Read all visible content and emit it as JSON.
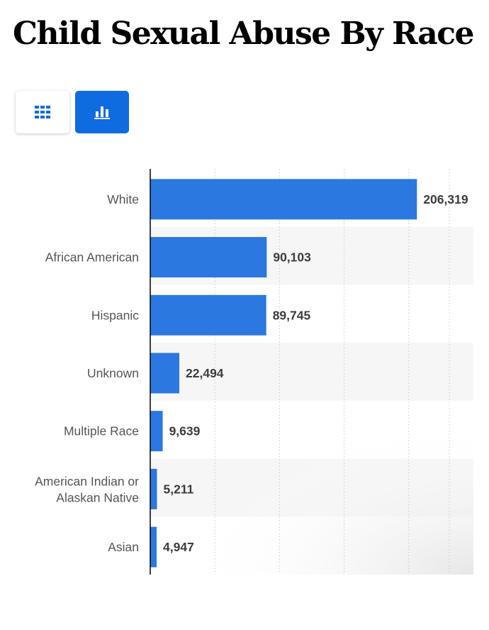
{
  "page": {
    "title": "Child Sexual Abuse By Race"
  },
  "view_toggle": {
    "table_icon": "grid-table-icon",
    "chart_icon": "bar-chart-icon",
    "active": "chart",
    "active_color": "#0f6be0"
  },
  "chart_data": {
    "type": "bar",
    "orientation": "horizontal",
    "title": "Child Sexual Abuse By Race",
    "xlabel": "",
    "ylabel": "",
    "categories": [
      "White",
      "African American",
      "Hispanic",
      "Unknown",
      "Multiple Race",
      "American Indian or Alaskan Native",
      "Asian"
    ],
    "values": [
      206319,
      90103,
      89745,
      22494,
      9639,
      5211,
      4947
    ],
    "value_labels": [
      "206,319",
      "90,103",
      "89,745",
      "22,494",
      "9,639",
      "5,211",
      "4,947"
    ],
    "xlim": [
      0,
      250000
    ],
    "grid": true,
    "bar_color": "#2b78e0"
  }
}
